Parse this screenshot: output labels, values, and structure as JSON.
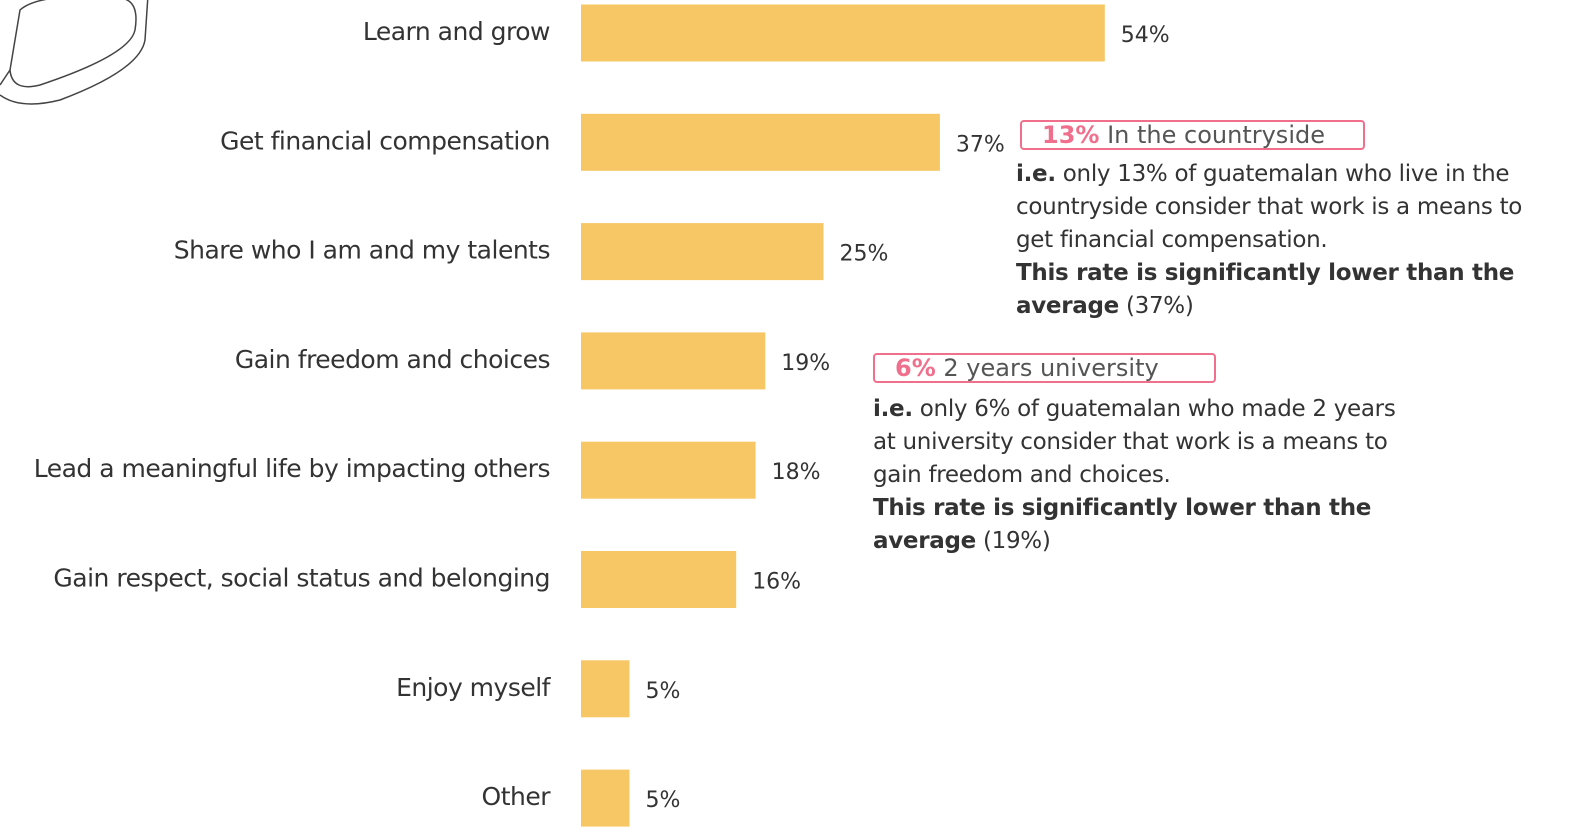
{
  "chart_data": {
    "type": "hbar",
    "categories": [
      "Learn and grow",
      "Get financial compensation",
      "Share who I am and my talents",
      "Gain freedom and choices",
      "Lead a meaningful life by impacting others",
      "Gain respect, social status and belonging",
      "Enjoy myself",
      "Other"
    ],
    "values": [
      54,
      37,
      25,
      19,
      18,
      16,
      5,
      5
    ],
    "value_labels": [
      "54%",
      "37%",
      "25%",
      "19%",
      "18%",
      "16%",
      "5%",
      "5%"
    ],
    "color": "#f7c765",
    "annotations": [
      {
        "highlight": "13%",
        "label": "In the countryside",
        "lead": "i.e.",
        "body": "only 13% of guatemalan who live in the countryside consider that work is a means to get financial compensation.",
        "emphasis": "This rate is significantly lower than the average",
        "note": "(37%)"
      },
      {
        "highlight": "6%",
        "label": "2 years university",
        "lead": "i.e.",
        "body": "only 6% of guatemalan who made 2 years at university consider that work is a means to gain freedom and choices.",
        "emphasis": "This rate is significantly lower than the average",
        "note": "(19%)"
      }
    ]
  }
}
